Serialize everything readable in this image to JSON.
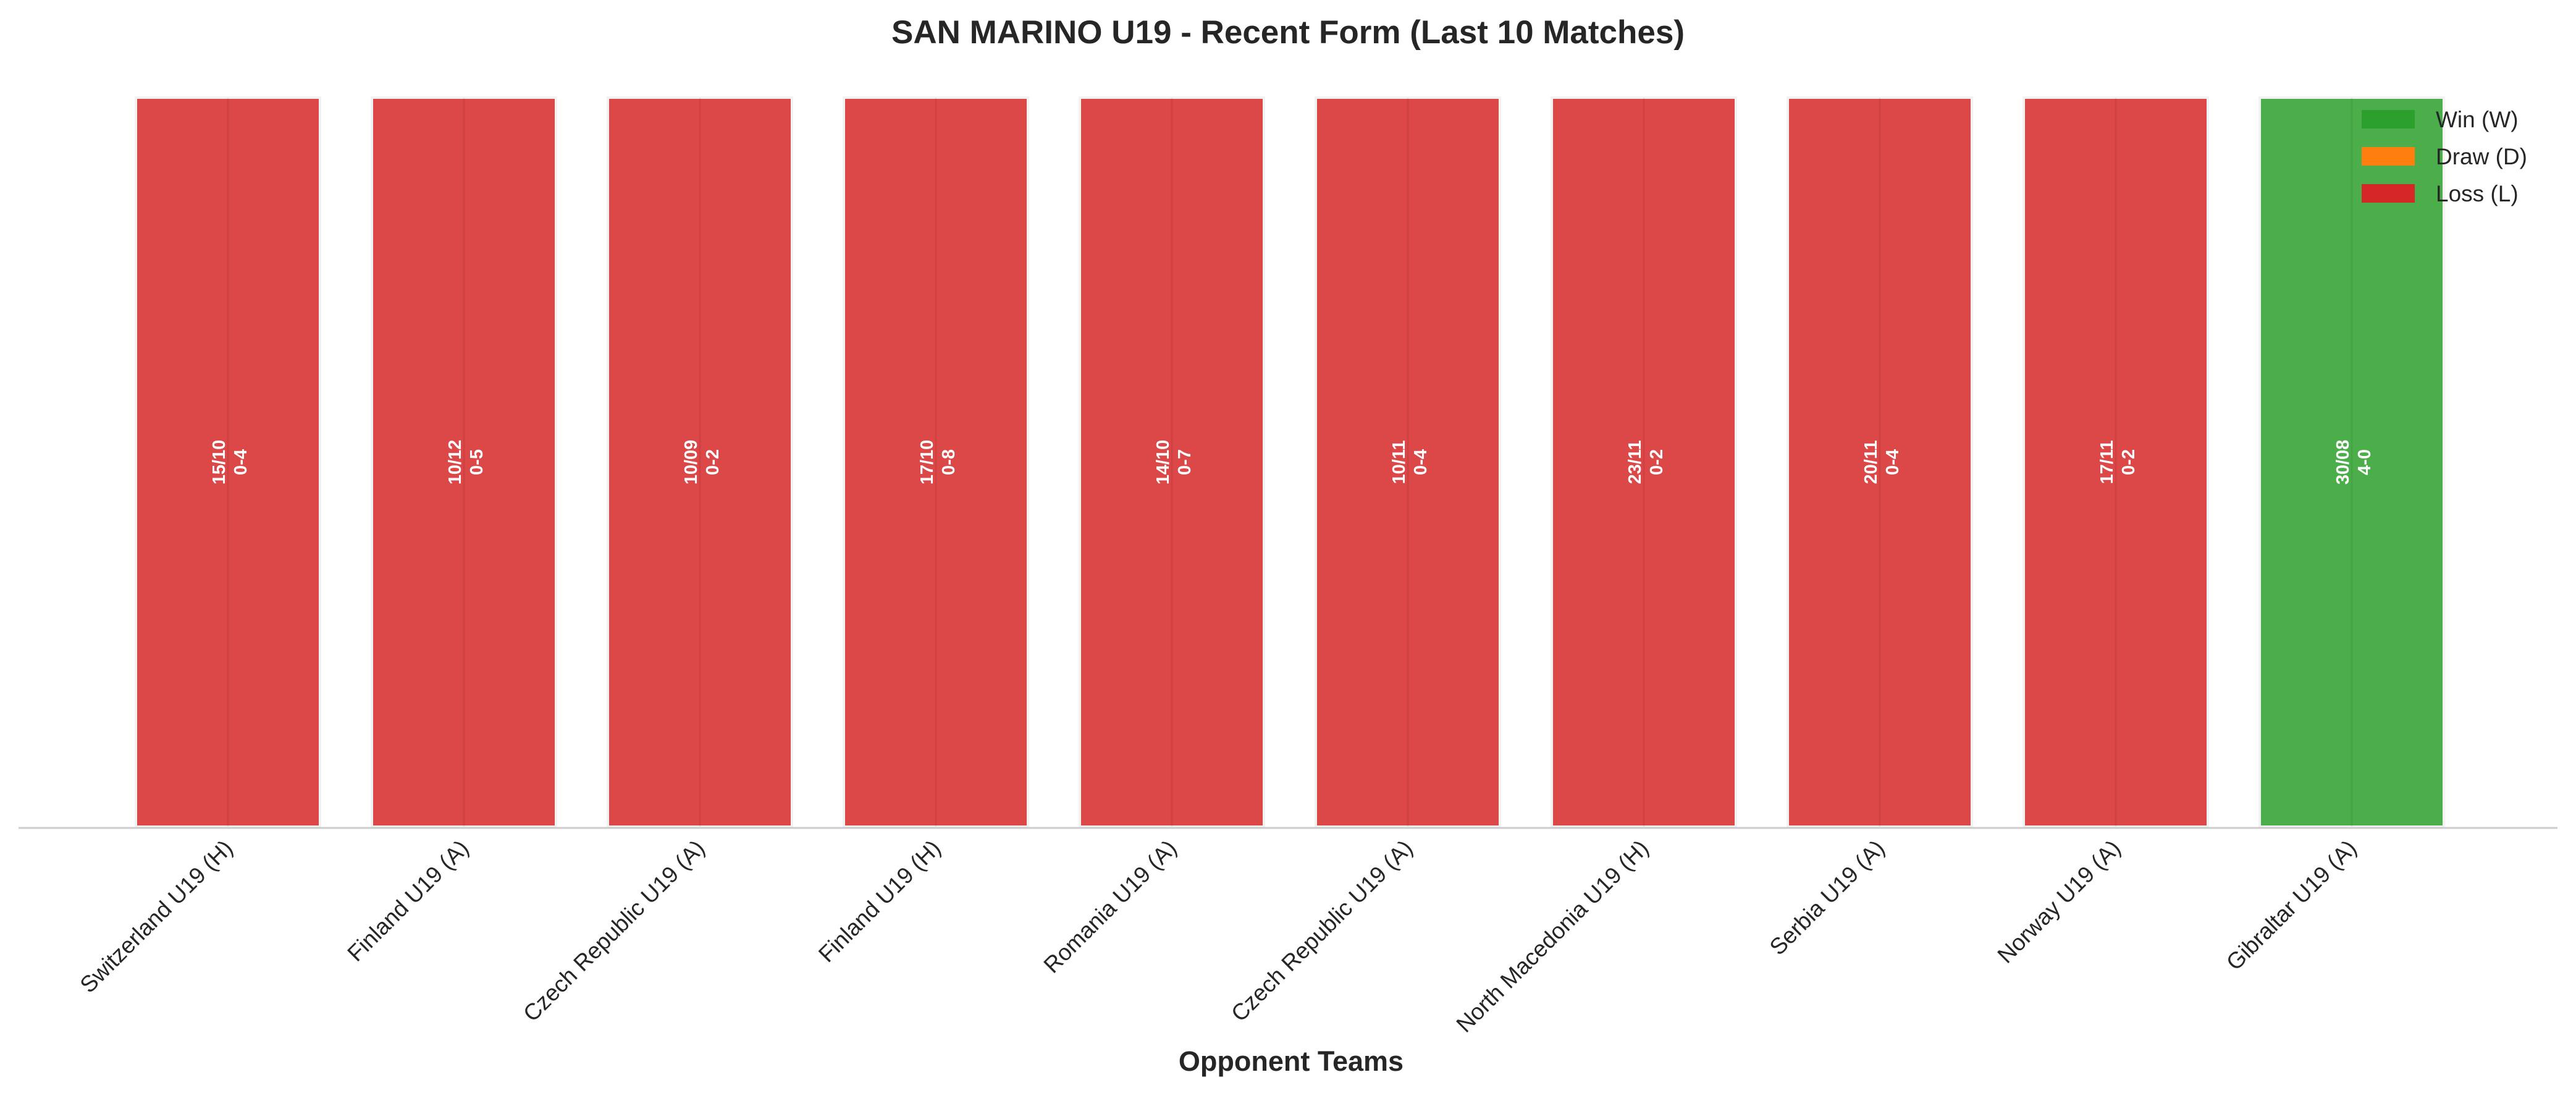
{
  "chart_data": {
    "type": "bar",
    "title": "SAN MARINO U19 - Recent Form (Last 10 Matches)",
    "xlabel": "Opponent Teams",
    "ylabel": "",
    "categories": [
      "Switzerland U19 (H)",
      "Finland U19 (A)",
      "Czech Republic U19 (A)",
      "Finland U19 (H)",
      "Romania U19 (A)",
      "Czech Republic U19 (A)",
      "North Macedonia U19 (H)",
      "Serbia U19 (A)",
      "Norway U19 (A)",
      "Gibraltar U19 (A)"
    ],
    "values": [
      1,
      1,
      1,
      1,
      1,
      1,
      1,
      1,
      1,
      1
    ],
    "results": [
      "L",
      "L",
      "L",
      "L",
      "L",
      "L",
      "L",
      "L",
      "L",
      "W"
    ],
    "dates": [
      "15/10",
      "10/12",
      "10/09",
      "17/10",
      "14/10",
      "10/11",
      "23/11",
      "20/11",
      "17/11",
      "30/08"
    ],
    "scores": [
      "0-4",
      "0-5",
      "0-2",
      "0-8",
      "0-7",
      "0-4",
      "0-2",
      "0-4",
      "0-2",
      "4-0"
    ],
    "ylim": [
      0,
      1
    ],
    "grid": false,
    "legend": {
      "placement": "top-right",
      "entries": [
        {
          "key": "W",
          "label": "Win (W)",
          "color": "#2ca02c"
        },
        {
          "key": "D",
          "label": "Draw (D)",
          "color": "#ff7f0e"
        },
        {
          "key": "L",
          "label": "Loss (L)",
          "color": "#d62728"
        }
      ]
    }
  }
}
